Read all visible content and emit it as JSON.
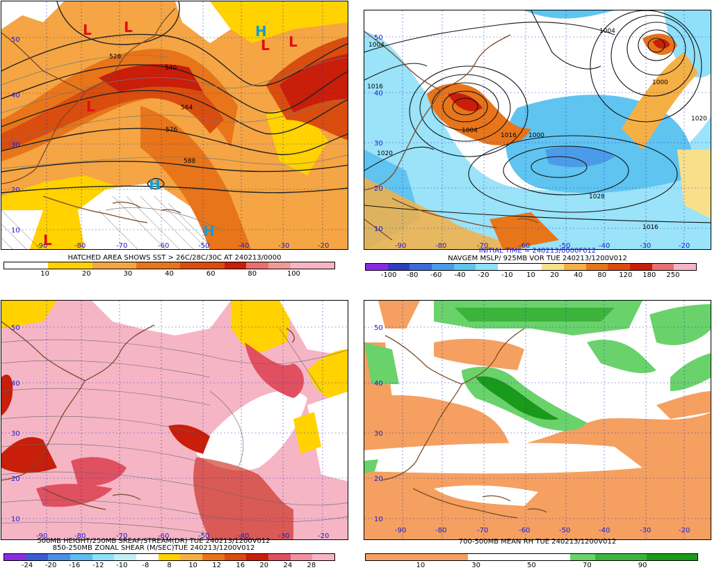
{
  "panels": [
    {
      "id": "p1",
      "caption_lines": [
        "HATCHED AREA SHOWS SST > 26C/28C/30C AT 240213/0000"
      ],
      "colorbar": {
        "colors": [
          "#ffffff",
          "#ffffff",
          "#ffd200",
          "#ffd200",
          "#f5a543",
          "#f5a543",
          "#e8751a",
          "#e8751a",
          "#d94d0f",
          "#d94d0f",
          "#c81e0a",
          "#e8706e",
          "#ef9a9a",
          "#f5b5c5",
          "#f5b5c5"
        ],
        "ticks": [
          "10",
          "20",
          "30",
          "40",
          "60",
          "80",
          "100"
        ]
      },
      "lat_labels": [
        "50",
        "40",
        "30",
        "20",
        "10"
      ],
      "lon_labels": [
        "-90",
        "-80",
        "-70",
        "-60",
        "-50",
        "-40",
        "-30",
        "-20"
      ],
      "contour_labels": [
        "528",
        "540",
        "564",
        "576",
        "588"
      ],
      "systems": [
        {
          "text": "L",
          "color": "#e01010"
        },
        {
          "text": "L",
          "color": "#e01010"
        },
        {
          "text": "L",
          "color": "#e01010"
        },
        {
          "text": "H",
          "color": "#1a9ad0"
        },
        {
          "text": "L",
          "color": "#e01010"
        },
        {
          "text": "L",
          "color": "#e01010"
        },
        {
          "text": "H",
          "color": "#1a9ad0"
        },
        {
          "text": "L",
          "color": "#e01010"
        },
        {
          "text": "H",
          "color": "#1a9ad0"
        }
      ]
    },
    {
      "id": "p2",
      "caption_lines": [
        "INITIAL TIME = 240213/0000F012",
        "NAVGEM MSLP/ 925MB VOR TUE 240213/1200V012"
      ],
      "colorbar": {
        "colors": [
          "#8a2be2",
          "#2f3fbf",
          "#3a6cd8",
          "#4c9be8",
          "#5fc4f0",
          "#8fe0f8",
          "#ffffff",
          "#ffffff",
          "#f8e08a",
          "#f5b045",
          "#e8751a",
          "#d94d0f",
          "#c81e0a",
          "#e8706e",
          "#f5b5c5"
        ],
        "ticks": [
          "-100",
          "-80",
          "-60",
          "-40",
          "-20",
          "-10",
          "10",
          "20",
          "40",
          "80",
          "120",
          "180",
          "250"
        ]
      },
      "lat_labels": [
        "50",
        "40",
        "30",
        "20",
        "10"
      ],
      "lon_labels": [
        "-90",
        "-80",
        "-70",
        "-60",
        "-50",
        "-40",
        "-30",
        "-20"
      ],
      "contour_labels": [
        "1004",
        "1016",
        "1020",
        "1004",
        "1016",
        "1000",
        "1020",
        "1028",
        "1016",
        "1004",
        "1000"
      ]
    },
    {
      "id": "p3",
      "caption_lines": [
        "500MB HEIGHT/250MB SREAF/STREAM(DR) TUE 240213/1200V012",
        "850-250MB ZONAL SHEAR (M/SEC)TUE 240213/1200V012"
      ],
      "colorbar": {
        "colors": [
          "#8a2be2",
          "#3a5cd0",
          "#4c8fe8",
          "#5fbef0",
          "#8fe0f8",
          "#c0f0f8",
          "#ffffff",
          "#ffd200",
          "#f5b045",
          "#e8751a",
          "#d94d0f",
          "#c81e0a",
          "#e05060",
          "#f090a0",
          "#f5b5c5"
        ],
        "ticks": [
          "-24",
          "-20",
          "-16",
          "-12",
          "-10",
          "-8",
          "8",
          "10",
          "12",
          "16",
          "20",
          "24",
          "28"
        ]
      },
      "lat_labels": [
        "50",
        "40",
        "30",
        "20",
        "10"
      ],
      "lon_labels": [
        "-90",
        "-80",
        "-70",
        "-60",
        "-50",
        "-40",
        "-30",
        "-20"
      ]
    },
    {
      "id": "p4",
      "caption_lines": [
        "700-500MB MEAN RH TUE 240213/1200V012"
      ],
      "colorbar": {
        "colors": [
          "#f5a060",
          "#f5a060",
          "#f5a060",
          "#f5a060",
          "#ffffff",
          "#ffffff",
          "#ffffff",
          "#ffffff",
          "#6ad26a",
          "#3cb43c",
          "#3cb43c",
          "#1a9a1a",
          "#1a9a1a"
        ],
        "ticks": [
          "10",
          "30",
          "50",
          "70",
          "90"
        ]
      },
      "lat_labels": [
        "50",
        "40",
        "30",
        "20",
        "10"
      ],
      "lon_labels": [
        "-90",
        "-80",
        "-70",
        "-60",
        "-50",
        "-40",
        "-30",
        "-20"
      ]
    }
  ]
}
